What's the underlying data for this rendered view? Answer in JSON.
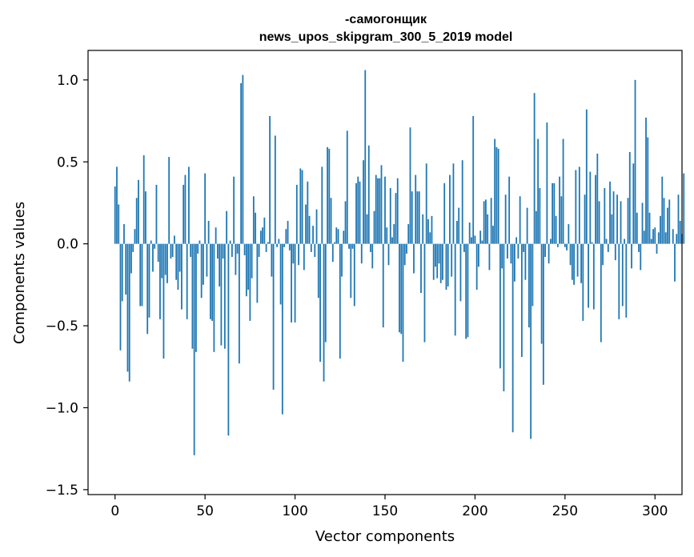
{
  "chart_data": {
    "type": "bar",
    "title_line1": "-самогонщик",
    "title_line2": "news_upos_skipgram_300_5_2019 model",
    "xlabel": "Vector components",
    "ylabel": "Components values",
    "xlim": [
      -15,
      315
    ],
    "ylim": [
      -1.53,
      1.18
    ],
    "x_ticks": [
      0,
      50,
      100,
      150,
      200,
      250,
      300
    ],
    "x_tick_labels": [
      "0",
      "50",
      "100",
      "150",
      "200",
      "250",
      "300"
    ],
    "y_ticks": [
      -1.5,
      -1.0,
      -0.5,
      0.0,
      0.5,
      1.0
    ],
    "y_tick_labels": [
      "−1.5",
      "−1.0",
      "−0.5",
      "0.0",
      "0.5",
      "1.0"
    ],
    "bar_color": "#1f77b4",
    "grid": false,
    "values": [
      0.35,
      0.47,
      0.24,
      -0.65,
      -0.35,
      0.12,
      -0.31,
      -0.78,
      -0.84,
      -0.18,
      -0.05,
      0.09,
      0.28,
      0.39,
      -0.38,
      -0.38,
      0.54,
      0.32,
      -0.55,
      -0.45,
      0.02,
      -0.17,
      -0.03,
      0.36,
      -0.11,
      -0.46,
      -0.21,
      -0.7,
      -0.19,
      -0.24,
      0.53,
      -0.09,
      -0.08,
      0.05,
      -0.22,
      -0.28,
      -0.17,
      -0.4,
      0.36,
      0.42,
      -0.46,
      0.47,
      -0.08,
      -0.64,
      -1.29,
      -0.66,
      -0.06,
      0.02,
      -0.33,
      -0.25,
      0.43,
      -0.2,
      0.14,
      -0.46,
      -0.47,
      -0.66,
      0.1,
      -0.09,
      -0.26,
      -0.62,
      -0.09,
      -0.64,
      0.2,
      -1.17,
      0.02,
      -0.08,
      0.41,
      -0.19,
      -0.06,
      -0.73,
      0.98,
      1.03,
      -0.07,
      -0.32,
      -0.28,
      -0.47,
      -0.21,
      0.29,
      0.19,
      -0.36,
      -0.08,
      0.08,
      0.1,
      0.16,
      -0.05,
      0.01,
      0.78,
      -0.2,
      -0.89,
      0.66,
      -0.02,
      0.03,
      -0.37,
      -1.04,
      -0.02,
      0.09,
      0.14,
      -0.04,
      -0.48,
      -0.12,
      -0.48,
      0.36,
      -0.13,
      0.46,
      0.45,
      -0.16,
      0.24,
      0.38,
      0.17,
      -0.05,
      0.11,
      -0.08,
      0.21,
      -0.33,
      -0.72,
      0.47,
      -0.84,
      -0.6,
      0.59,
      0.58,
      0.28,
      -0.11,
      0.01,
      0.1,
      0.09,
      -0.7,
      -0.2,
      0.08,
      0.26,
      0.69,
      -0.03,
      -0.33,
      -0.03,
      -0.38,
      0.37,
      0.41,
      0.38,
      -0.12,
      0.51,
      1.06,
      0.18,
      0.6,
      -0.05,
      -0.15,
      0.2,
      0.42,
      0.4,
      0.4,
      0.48,
      -0.51,
      0.41,
      0.1,
      -0.13,
      0.34,
      0.04,
      0.12,
      0.31,
      0.4,
      -0.54,
      -0.55,
      -0.72,
      -0.13,
      -0.06,
      0.12,
      0.71,
      0.32,
      -0.18,
      0.42,
      0.32,
      0.32,
      -0.3,
      0.18,
      -0.6,
      0.49,
      0.15,
      0.07,
      0.17,
      -0.22,
      -0.14,
      -0.21,
      -0.12,
      -0.24,
      -0.22,
      0.37,
      -0.28,
      -0.26,
      0.42,
      -0.2,
      0.49,
      -0.56,
      0.14,
      0.22,
      -0.35,
      0.51,
      -0.05,
      -0.58,
      -0.57,
      0.13,
      0.04,
      0.78,
      0.05,
      -0.28,
      -0.14,
      0.08,
      0.02,
      0.26,
      0.27,
      0.18,
      -0.16,
      0.28,
      0.11,
      0.64,
      0.59,
      0.58,
      -0.76,
      -0.15,
      -0.9,
      0.3,
      -0.09,
      0.41,
      -0.12,
      -1.15,
      -0.23,
      0.04,
      -0.09,
      0.29,
      -0.69,
      -0.05,
      -0.22,
      0.22,
      -0.51,
      -1.19,
      -0.38,
      0.92,
      0.2,
      0.64,
      0.34,
      -0.61,
      -0.86,
      -0.08,
      0.74,
      -0.12,
      0.03,
      0.37,
      0.37,
      0.17,
      -0.02,
      0.41,
      0.29,
      0.64,
      -0.02,
      -0.04,
      0.12,
      -0.13,
      -0.22,
      -0.25,
      0.45,
      -0.2,
      0.47,
      -0.24,
      -0.47,
      0.3,
      0.82,
      -0.39,
      0.44,
      0.01,
      -0.4,
      0.42,
      0.55,
      0.26,
      -0.6,
      -0.13,
      0.34,
      0.03,
      -0.05,
      0.38,
      0.18,
      0.32,
      -0.1,
      0.3,
      -0.46,
      0.26,
      -0.38,
      0.03,
      -0.45,
      0.28,
      0.56,
      -0.15,
      0.49,
      1.0,
      0.19,
      -0.05,
      -0.16,
      0.25,
      0.08,
      0.77,
      0.65,
      0.19,
      0.03,
      0.09,
      0.1,
      -0.06,
      0.07,
      0.17,
      0.41,
      0.28,
      0.07,
      0.22,
      0.27,
      0.0,
      0.09,
      -0.23,
      0.06,
      0.3,
      0.14,
      0.06,
      0.43
    ]
  }
}
